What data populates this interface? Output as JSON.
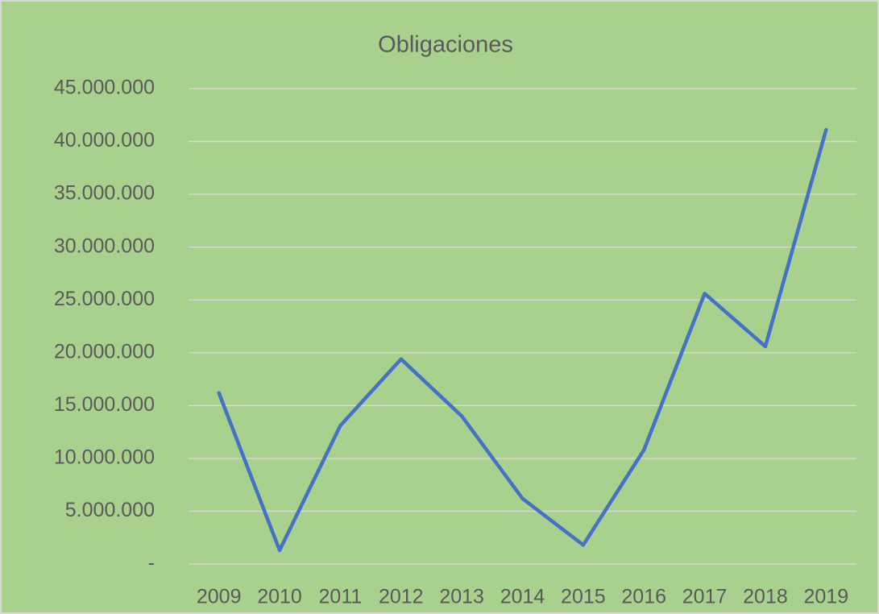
{
  "chart_data": {
    "type": "line",
    "title": "Obligaciones",
    "categories": [
      "2009",
      "2010",
      "2011",
      "2012",
      "2013",
      "2014",
      "2015",
      "2016",
      "2017",
      "2018",
      "2019"
    ],
    "series": [
      {
        "name": "Obligaciones",
        "color": "#4472c4",
        "values": [
          16200000,
          1300000,
          13100000,
          19400000,
          14000000,
          6200000,
          1800000,
          10800000,
          25600000,
          20600000,
          41100000
        ]
      }
    ],
    "ylim": [
      0,
      45000000
    ],
    "yticks": [
      {
        "value": 0,
        "label": "-"
      },
      {
        "value": 5000000,
        "label": "5.000.000"
      },
      {
        "value": 10000000,
        "label": "10.000.000"
      },
      {
        "value": 15000000,
        "label": "15.000.000"
      },
      {
        "value": 20000000,
        "label": "20.000.000"
      },
      {
        "value": 25000000,
        "label": "25.000.000"
      },
      {
        "value": 30000000,
        "label": "30.000.000"
      },
      {
        "value": 35000000,
        "label": "35.000.000"
      },
      {
        "value": 40000000,
        "label": "40.000.000"
      },
      {
        "value": 45000000,
        "label": "45.000.000"
      }
    ],
    "grid": true
  }
}
